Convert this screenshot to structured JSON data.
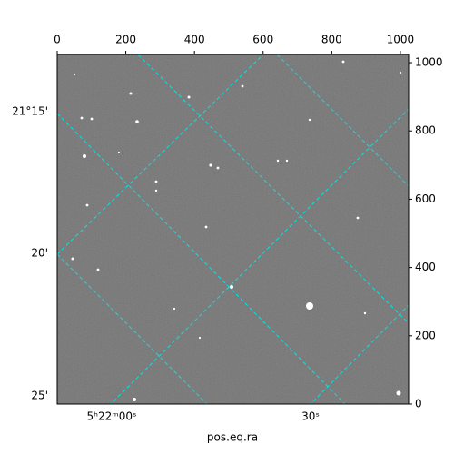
{
  "chart_data": {
    "type": "image",
    "xlabel": "pos.eq.ra",
    "xlim": [
      0,
      1024
    ],
    "xticks": [
      0,
      200,
      400,
      600,
      800,
      1000
    ],
    "ylim": [
      0,
      1024
    ],
    "yticks": [
      0,
      200,
      400,
      600,
      800,
      1000
    ],
    "ra_labels": [
      "5ʰ22ᵐ00ˢ",
      "30ˢ"
    ],
    "dec_labels": [
      "21°15'",
      "20'",
      "25'"
    ],
    "grid": true
  }
}
